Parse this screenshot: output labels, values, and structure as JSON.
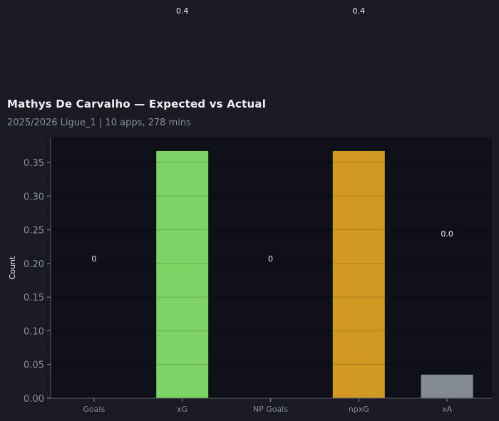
{
  "header": {
    "title": "Mathys De Carvalho — Expected vs Actual",
    "subtitle": "2025/2026 Ligue_1 | 10 apps, 278 mins"
  },
  "chart_data": {
    "type": "bar",
    "title": "Mathys De Carvalho — Expected vs Actual",
    "subtitle": "2025/2026 Ligue_1 | 10 apps, 278 mins",
    "xlabel": "",
    "ylabel": "Count",
    "ylim": [
      0,
      0.385
    ],
    "yticks": [
      "0.00",
      "0.05",
      "0.10",
      "0.15",
      "0.20",
      "0.25",
      "0.30",
      "0.35"
    ],
    "categories": [
      "Goals",
      "xG",
      "NP Goals",
      "npxG",
      "xA"
    ],
    "values": [
      0,
      0.367,
      0,
      0.367,
      0.035
    ],
    "colors": [
      "#7dd364",
      "#7dd364",
      "#d29922",
      "#d29922",
      "#848a94"
    ],
    "data_labels": [
      {
        "text": "0",
        "y": 0.207
      },
      {
        "text": "0.4",
        "y": 0.575
      },
      {
        "text": "0",
        "y": 0.207
      },
      {
        "text": "0.4",
        "y": 0.575
      },
      {
        "text": "0.0",
        "y": 0.244
      }
    ],
    "grid": true,
    "background": "#0d1017",
    "page_background": "#181b23"
  }
}
